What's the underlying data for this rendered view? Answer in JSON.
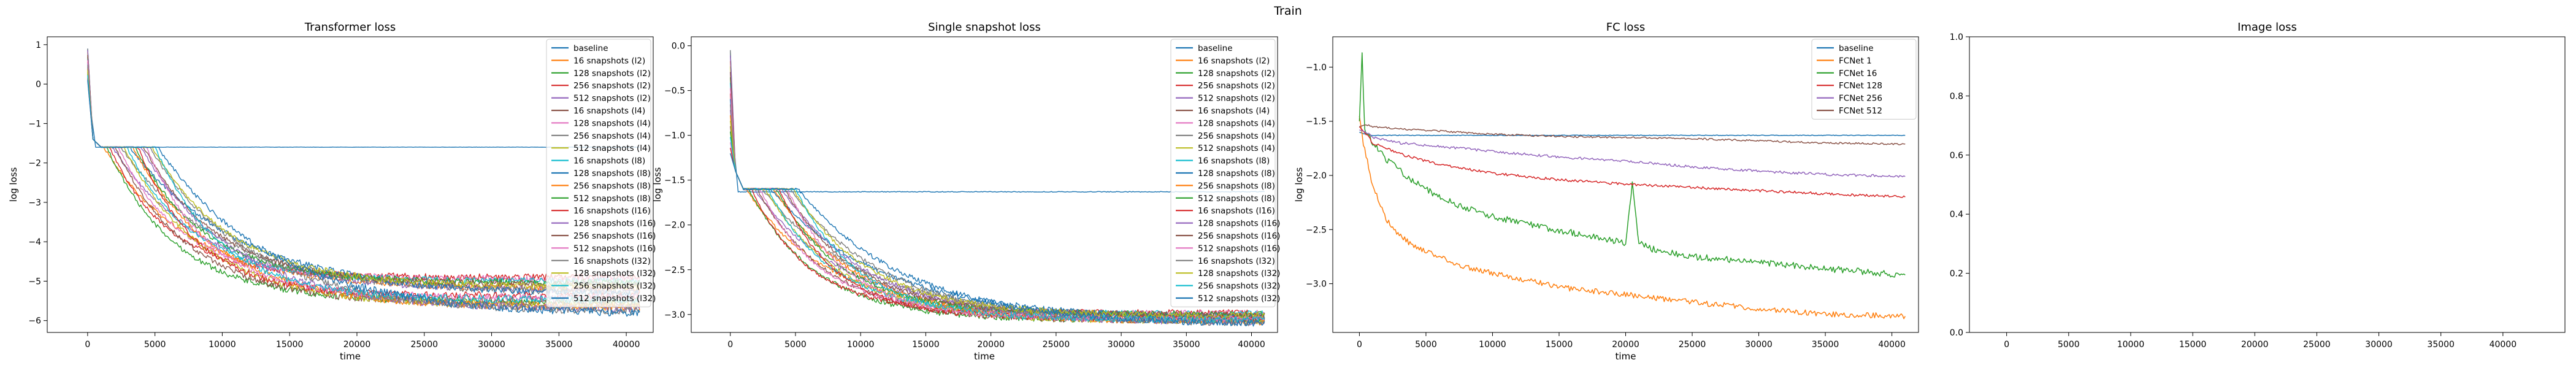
{
  "figure": {
    "suptitle": "Train"
  },
  "colors": {
    "tab10": [
      "#1f77b4",
      "#ff7f0e",
      "#2ca02c",
      "#d62728",
      "#9467bd",
      "#8c564b",
      "#e377c2",
      "#7f7f7f",
      "#bcbd22",
      "#17becf"
    ],
    "fc": [
      "#1f77b4",
      "#ff7f0e",
      "#2ca02c",
      "#d62728",
      "#9467bd",
      "#8c564b"
    ]
  },
  "chart_data": [
    {
      "type": "line",
      "title": "Transformer loss",
      "xlabel": "time",
      "ylabel": "log loss",
      "xlim": [
        -3000,
        42000
      ],
      "ylim": [
        -6.3,
        1.2
      ],
      "xticks": [
        0,
        5000,
        10000,
        15000,
        20000,
        25000,
        30000,
        35000,
        40000
      ],
      "yticks": [
        1,
        0,
        -1,
        -2,
        -3,
        -4,
        -5,
        -6
      ],
      "legend": "upper right",
      "series_summary": {
        "baseline": {
          "start": 0.9,
          "plateau": -1.6,
          "end_x": 41000
        },
        "others": {
          "start_range": [
            0.1,
            0.9
          ],
          "drop_to": -1.6,
          "end_range": [
            -5.8,
            -4.9
          ],
          "end_x": 41000
        }
      },
      "series": [
        {
          "name": "baseline"
        },
        {
          "name": "16 snapshots (l2)"
        },
        {
          "name": "128 snapshots (l2)"
        },
        {
          "name": "256 snapshots (l2)"
        },
        {
          "name": "512 snapshots (l2)"
        },
        {
          "name": "16 snapshots (l4)"
        },
        {
          "name": "128 snapshots (l4)"
        },
        {
          "name": "256 snapshots (l4)"
        },
        {
          "name": "512 snapshots (l4)"
        },
        {
          "name": "16 snapshots (l8)"
        },
        {
          "name": "128 snapshots (l8)"
        },
        {
          "name": "256 snapshots (l8)"
        },
        {
          "name": "512 snapshots (l8)"
        },
        {
          "name": "16 snapshots (l16)"
        },
        {
          "name": "128 snapshots (l16)"
        },
        {
          "name": "256 snapshots (l16)"
        },
        {
          "name": "512 snapshots (l16)"
        },
        {
          "name": "16 snapshots (l32)"
        },
        {
          "name": "128 snapshots (l32)"
        },
        {
          "name": "256 snapshots (l32)"
        },
        {
          "name": "512 snapshots (l32)"
        }
      ]
    },
    {
      "type": "line",
      "title": "Single snapshot loss",
      "xlabel": "time",
      "ylabel": "log loss",
      "xlim": [
        -3000,
        42000
      ],
      "ylim": [
        -3.2,
        0.1
      ],
      "xticks": [
        0,
        5000,
        10000,
        15000,
        20000,
        25000,
        30000,
        35000,
        40000
      ],
      "yticks": [
        0.0,
        -0.5,
        -1.0,
        -1.5,
        -2.0,
        -2.5,
        -3.0
      ],
      "ytick_labels": [
        "0.0",
        "−0.5",
        "−1.0",
        "−1.5",
        "−2.0",
        "−2.5",
        "−3.0"
      ],
      "legend": "upper right",
      "series_summary": {
        "baseline": {
          "start": -0.05,
          "plateau": -1.63,
          "end_x": 41000
        },
        "others": {
          "start_range": [
            -1.2,
            -0.05
          ],
          "drop_to": -1.6,
          "end_range": [
            -3.1,
            -2.98
          ],
          "end_x": 41000
        }
      },
      "series": [
        {
          "name": "baseline"
        },
        {
          "name": "16 snapshots (l2)"
        },
        {
          "name": "128 snapshots (l2)"
        },
        {
          "name": "256 snapshots (l2)"
        },
        {
          "name": "512 snapshots (l2)"
        },
        {
          "name": "16 snapshots (l4)"
        },
        {
          "name": "128 snapshots (l4)"
        },
        {
          "name": "256 snapshots (l4)"
        },
        {
          "name": "512 snapshots (l4)"
        },
        {
          "name": "16 snapshots (l8)"
        },
        {
          "name": "128 snapshots (l8)"
        },
        {
          "name": "256 snapshots (l8)"
        },
        {
          "name": "512 snapshots (l8)"
        },
        {
          "name": "16 snapshots (l16)"
        },
        {
          "name": "128 snapshots (l16)"
        },
        {
          "name": "256 snapshots (l16)"
        },
        {
          "name": "512 snapshots (l16)"
        },
        {
          "name": "16 snapshots (l32)"
        },
        {
          "name": "128 snapshots (l32)"
        },
        {
          "name": "256 snapshots (l32)"
        },
        {
          "name": "512 snapshots (l32)"
        }
      ]
    },
    {
      "type": "line",
      "title": "FC loss",
      "xlabel": "time",
      "ylabel": "log loss",
      "xlim": [
        -2000,
        42000
      ],
      "ylim": [
        -3.45,
        -0.72
      ],
      "xticks": [
        0,
        5000,
        10000,
        15000,
        20000,
        25000,
        30000,
        35000,
        40000
      ],
      "yticks": [
        -1.0,
        -1.5,
        -2.0,
        -2.5,
        -3.0
      ],
      "ytick_labels": [
        "−1.0",
        "−1.5",
        "−2.0",
        "−2.5",
        "−3.0"
      ],
      "legend": "upper right",
      "series": [
        {
          "name": "baseline",
          "x": [
            0,
            400,
            1000,
            5000,
            10000,
            20000,
            30000,
            41000
          ],
          "y": [
            -1.6,
            -1.62,
            -1.63,
            -1.63,
            -1.63,
            -1.63,
            -1.63,
            -1.63
          ]
        },
        {
          "name": "FCNet 1",
          "x": [
            0,
            300,
            1000,
            2000,
            3000,
            4000,
            6000,
            8000,
            10000,
            13000,
            16000,
            20000,
            25000,
            30000,
            35000,
            41000
          ],
          "y": [
            -1.45,
            -1.7,
            -2.1,
            -2.4,
            -2.55,
            -2.65,
            -2.75,
            -2.85,
            -2.9,
            -2.98,
            -3.05,
            -3.1,
            -3.17,
            -3.23,
            -3.28,
            -3.3
          ]
        },
        {
          "name": "FCNet 16",
          "x": [
            0,
            200,
            400,
            1000,
            2000,
            4000,
            6000,
            8000,
            10000,
            13000,
            16000,
            20000,
            20500,
            21000,
            22000,
            25000,
            30000,
            35000,
            41000
          ],
          "y": [
            -1.5,
            -0.87,
            -1.6,
            -1.7,
            -1.85,
            -2.05,
            -2.2,
            -2.3,
            -2.38,
            -2.46,
            -2.53,
            -2.62,
            -2.07,
            -2.62,
            -2.68,
            -2.75,
            -2.8,
            -2.86,
            -2.92
          ]
        },
        {
          "name": "FCNet 128",
          "x": [
            0,
            500,
            1000,
            3000,
            6000,
            10000,
            15000,
            20000,
            25000,
            30000,
            35000,
            41000
          ],
          "y": [
            -1.55,
            -1.62,
            -1.7,
            -1.8,
            -1.9,
            -1.98,
            -2.04,
            -2.08,
            -2.11,
            -2.14,
            -2.17,
            -2.2
          ]
        },
        {
          "name": "FCNet 256",
          "x": [
            0,
            500,
            1000,
            3000,
            6000,
            10000,
            15000,
            20000,
            25000,
            30000,
            35000,
            41000
          ],
          "y": [
            -1.58,
            -1.6,
            -1.65,
            -1.7,
            -1.73,
            -1.78,
            -1.83,
            -1.87,
            -1.92,
            -1.96,
            -1.99,
            -2.01
          ]
        },
        {
          "name": "FCNet 512",
          "x": [
            0,
            500,
            1000,
            3000,
            6000,
            10000,
            15000,
            20000,
            25000,
            30000,
            35000,
            41000
          ],
          "y": [
            -1.55,
            -1.53,
            -1.55,
            -1.57,
            -1.59,
            -1.62,
            -1.64,
            -1.65,
            -1.66,
            -1.68,
            -1.7,
            -1.71
          ]
        }
      ]
    },
    {
      "type": "line",
      "title": "Image loss",
      "xlabel": "",
      "ylabel": "",
      "xlim": [
        -3000,
        45000
      ],
      "ylim": [
        0,
        1
      ],
      "xticks": [
        0,
        5000,
        10000,
        15000,
        20000,
        25000,
        30000,
        35000,
        40000
      ],
      "yticks": [
        0.0,
        0.2,
        0.4,
        0.6,
        0.8,
        1.0
      ],
      "ytick_labels": [
        "0.0",
        "0.2",
        "0.4",
        "0.6",
        "0.8",
        "1.0"
      ],
      "series": []
    }
  ]
}
